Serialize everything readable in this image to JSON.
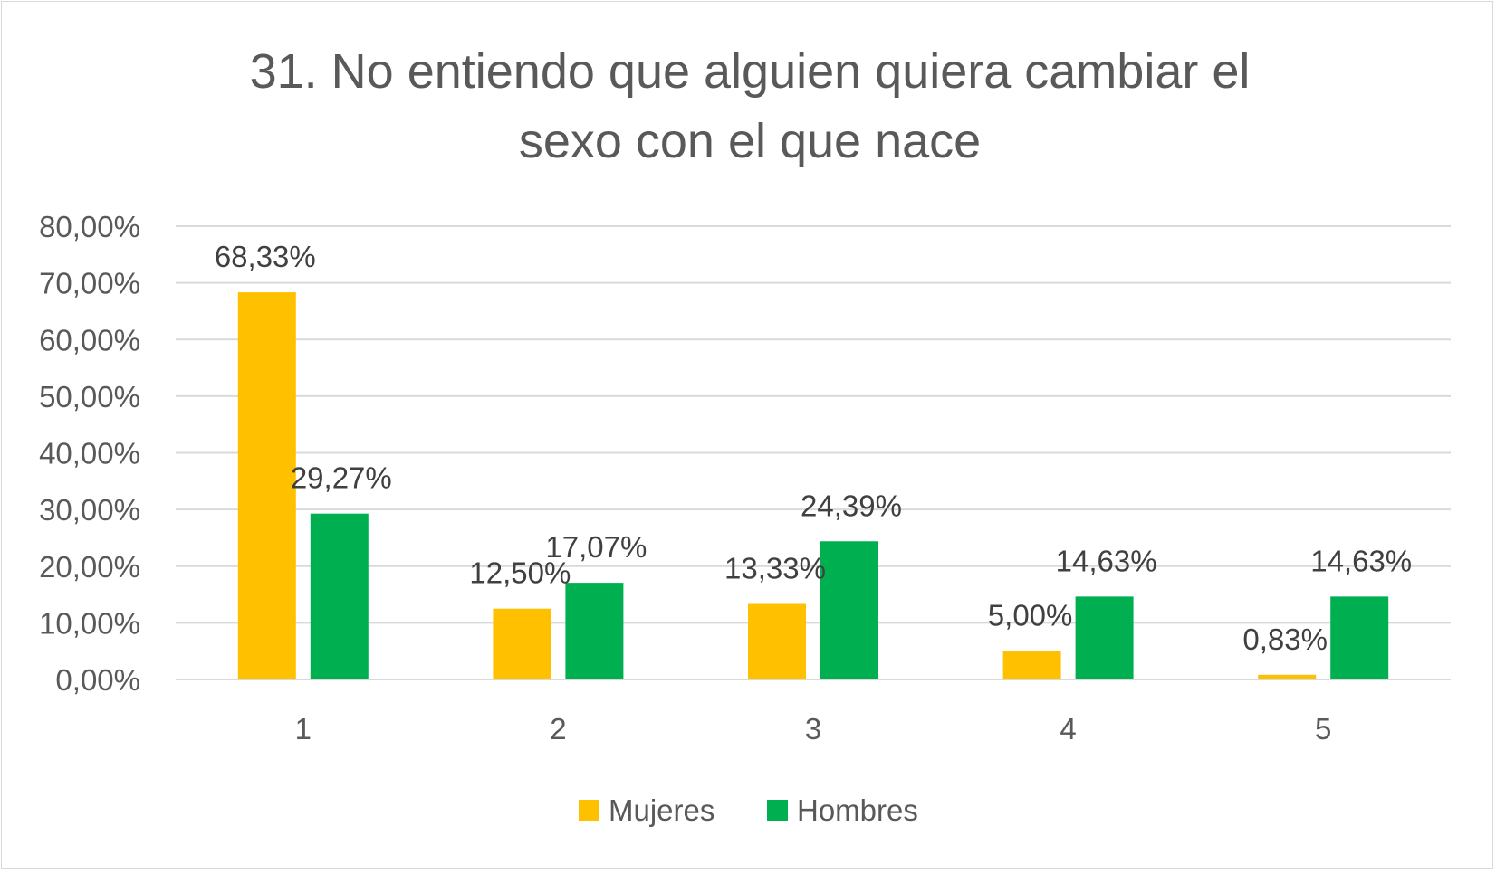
{
  "chart_data": {
    "type": "bar",
    "title_lines": [
      "31. No entiendo que alguien quiera cambiar el",
      "sexo con el que nace"
    ],
    "categories": [
      "1",
      "2",
      "3",
      "4",
      "5"
    ],
    "series": [
      {
        "name": "Mujeres",
        "color": "#FFC000",
        "values": [
          68.33,
          12.5,
          13.33,
          5.0,
          0.83
        ],
        "labels": [
          "68,33%",
          "12,50%",
          "13,33%",
          "5,00%",
          "0,83%"
        ]
      },
      {
        "name": "Hombres",
        "color": "#00B050",
        "values": [
          29.27,
          17.07,
          24.39,
          14.63,
          14.63
        ],
        "labels": [
          "29,27%",
          "17,07%",
          "24,39%",
          "14,63%",
          "14,63%"
        ]
      }
    ],
    "ylim": [
      0,
      80
    ],
    "yticks": [
      0,
      10,
      20,
      30,
      40,
      50,
      60,
      70,
      80
    ],
    "ytick_labels": [
      "0,00%",
      "10,00%",
      "20,00%",
      "30,00%",
      "40,00%",
      "50,00%",
      "60,00%",
      "70,00%",
      "80,00%"
    ],
    "grid": true,
    "legend_position": "bottom",
    "xlabel": "",
    "ylabel": ""
  }
}
